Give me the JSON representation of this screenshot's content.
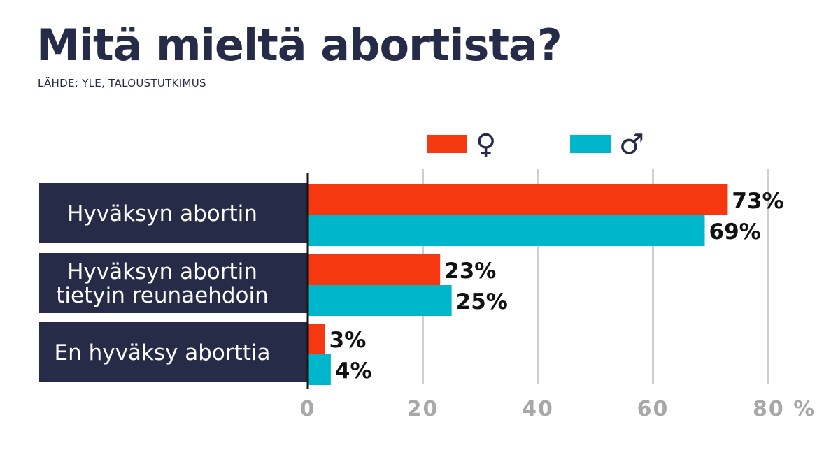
{
  "title": "Mitä mieltä abortista?",
  "source": "LÄHDE: YLE, TALOUSTUTKIMUS",
  "chart_data": {
    "type": "bar",
    "orientation": "horizontal",
    "title": "Mitä mieltä abortista?",
    "categories": [
      [
        "Hyväksyn abortin"
      ],
      [
        "Hyväksyn abortin",
        "tietyin reunaehdoin"
      ],
      [
        "En hyväksy aborttia"
      ]
    ],
    "series": [
      {
        "name": "♀",
        "color": "#f5380f",
        "values": [
          73,
          23,
          3
        ],
        "labels": [
          "73%",
          "23%",
          "3%"
        ]
      },
      {
        "name": "♂",
        "color": "#00b6ca",
        "values": [
          69,
          25,
          4
        ],
        "labels": [
          "69%",
          "25%",
          "4%"
        ]
      }
    ],
    "xlim": [
      0,
      80
    ],
    "ticks": [
      0,
      20,
      40,
      60,
      80
    ],
    "tick_labels": [
      "0",
      "20",
      "40",
      "60",
      "80 %"
    ],
    "grid": true,
    "legend": "top"
  },
  "colors": {
    "navy": "#262c48",
    "grid": "#cfcfcf",
    "axis": "#111111"
  }
}
